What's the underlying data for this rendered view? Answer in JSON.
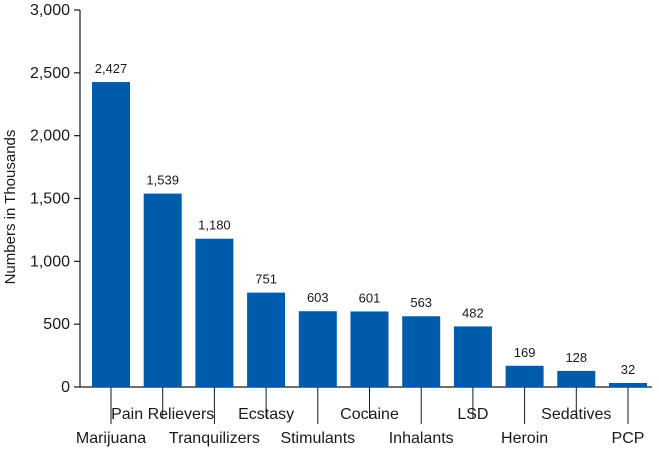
{
  "chart_data": {
    "type": "bar",
    "title": "",
    "xlabel": "",
    "ylabel": "Numbers in Thousands",
    "ylim": [
      0,
      3000
    ],
    "yticks": [
      0,
      500,
      1000,
      1500,
      2000,
      2500,
      3000
    ],
    "ytick_labels": [
      "0",
      "500",
      "1,000",
      "1,500",
      "2,000",
      "2,500",
      "3,000"
    ],
    "categories": [
      "Marijuana",
      "Pain Relievers",
      "Tranquilizers",
      "Ecstasy",
      "Stimulants",
      "Cocaine",
      "Inhalants",
      "LSD",
      "Heroin",
      "Sedatives",
      "PCP"
    ],
    "values": [
      2427,
      1539,
      1180,
      751,
      603,
      601,
      563,
      482,
      169,
      128,
      32
    ],
    "value_labels": [
      "2,427",
      "1,539",
      "1,180",
      "751",
      "603",
      "601",
      "563",
      "482",
      "169",
      "128",
      "32"
    ],
    "label_rows": [
      "bottom",
      "top",
      "bottom",
      "top",
      "bottom",
      "top",
      "bottom",
      "top",
      "bottom",
      "top",
      "bottom"
    ],
    "grid": false,
    "legend": "none",
    "bar_color": "#005bab",
    "axis_color": "#1a1a1a"
  }
}
